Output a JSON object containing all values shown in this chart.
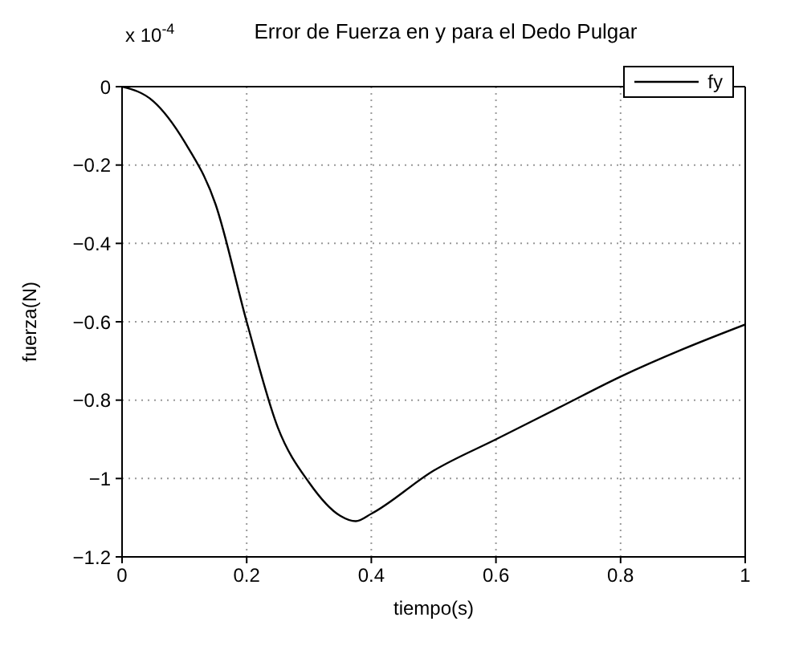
{
  "chart_data": {
    "type": "line",
    "title": "Error de Fuerza en y para el Dedo Pulgar",
    "xlabel": "tiempo(s)",
    "ylabel": "fuerza(N)",
    "annotations": [
      "x 10$^{-4}$"
    ],
    "x": [
      0,
      0.05,
      0.1,
      0.15,
      0.2,
      0.25,
      0.3,
      0.35,
      0.375,
      0.4,
      0.5,
      0.6,
      0.7,
      0.8,
      0.9,
      1.0
    ],
    "series": [
      {
        "name": "fy",
        "color": "#000000",
        "values": [
          0,
          -0.037,
          -0.14,
          -0.3,
          -0.6,
          -0.87,
          -1.01,
          -1.095,
          -1.109,
          -1.09,
          -0.98,
          -0.9,
          -0.82,
          -0.74,
          -0.67,
          -0.607
        ]
      }
    ],
    "xlim": [
      0,
      1
    ],
    "xticks": [
      0,
      0.2,
      0.4,
      0.6,
      0.8,
      1
    ],
    "ylim": [
      -1.2,
      0
    ],
    "yticks": [
      -1.2,
      -1,
      -0.8,
      -0.6,
      -0.4,
      -0.2,
      0
    ],
    "grid": true,
    "legend": "top right",
    "marker": "none",
    "line_style": "solid"
  }
}
